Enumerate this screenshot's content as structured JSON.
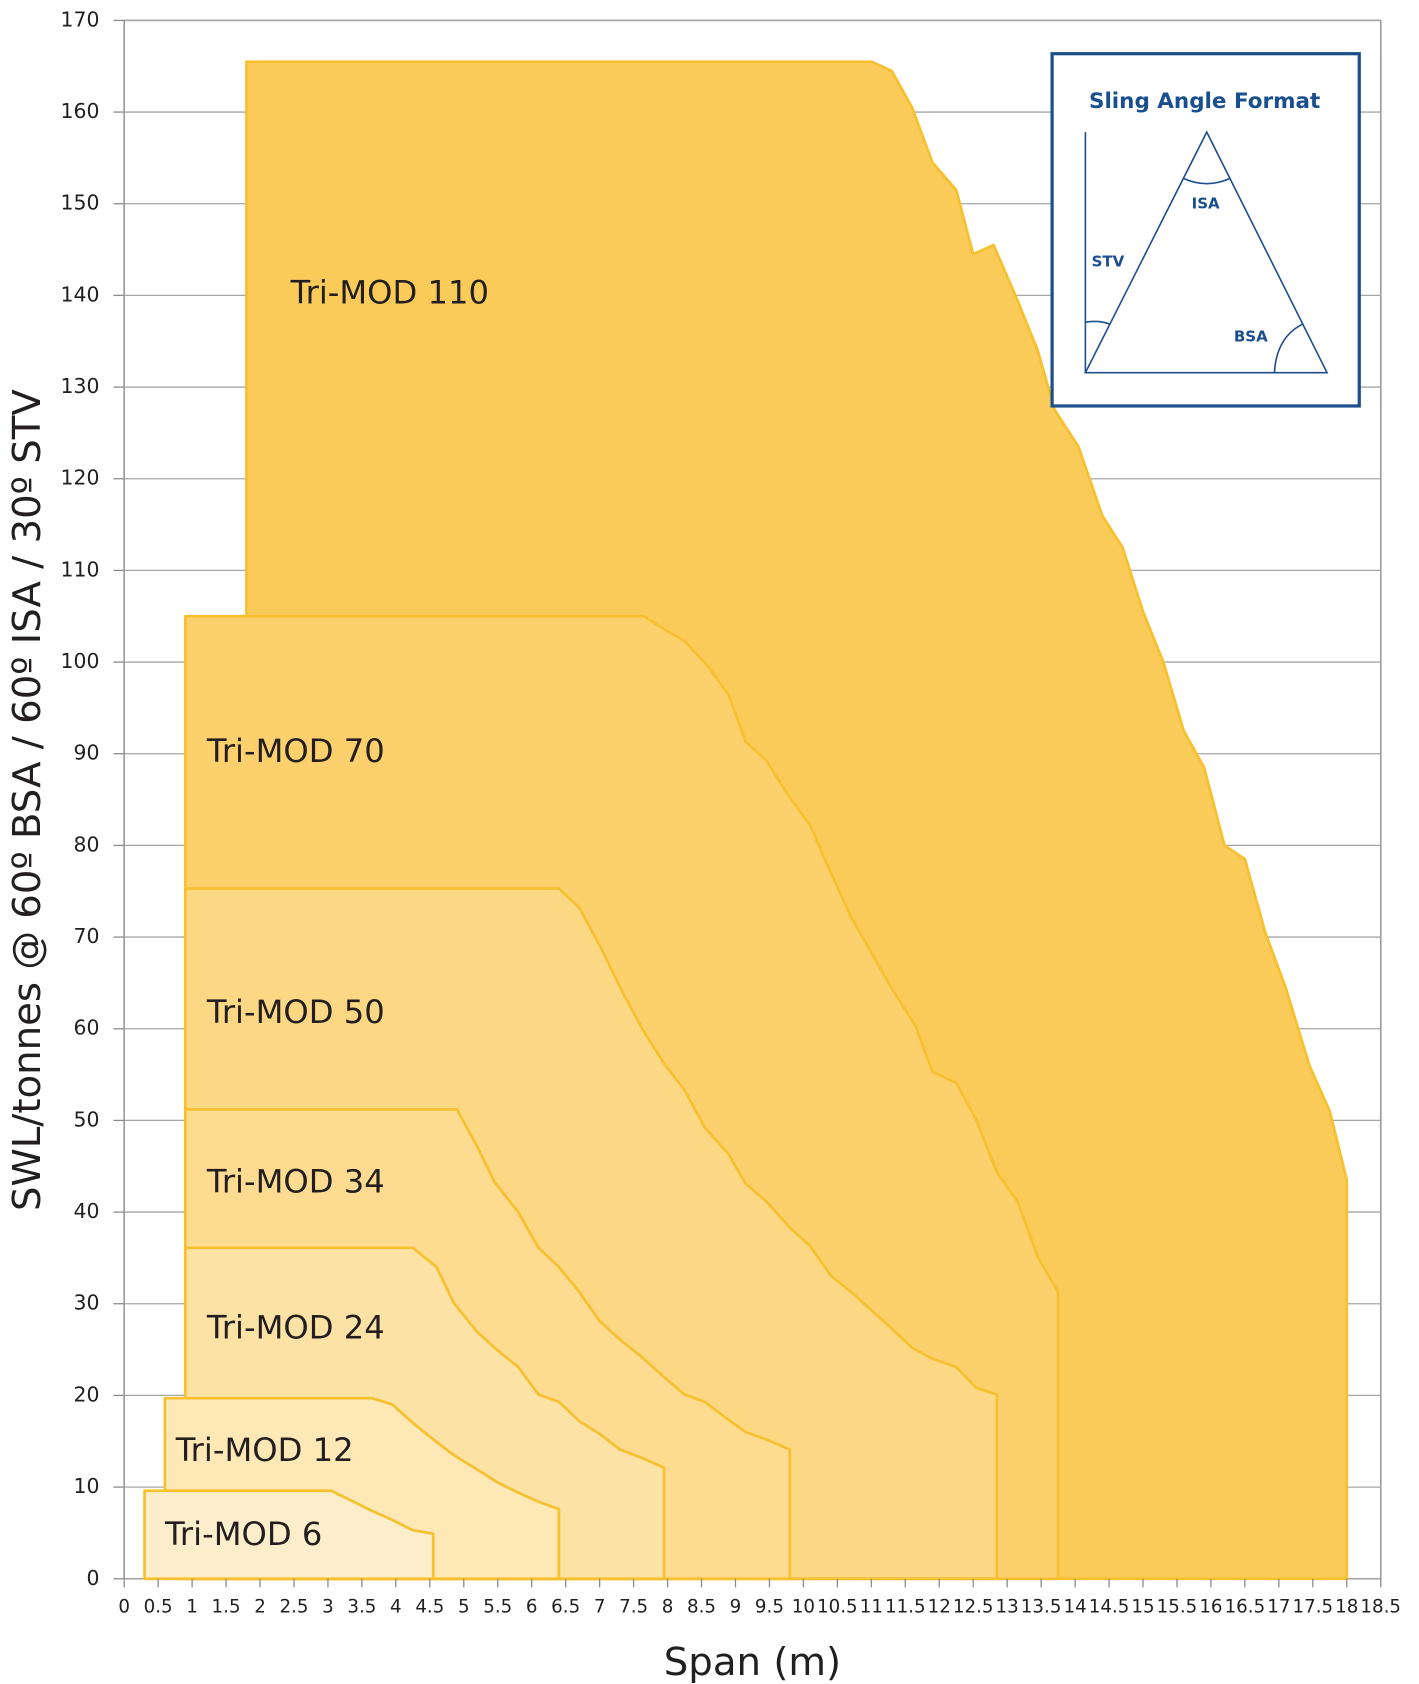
{
  "chart_data": {
    "type": "area",
    "x_label": "Span (m)",
    "y_label": "SWL/tonnes @ 60º BSA / 60º ISA / 30º STV",
    "xlim": [
      0,
      18.5
    ],
    "ylim": [
      0,
      170
    ],
    "xticks": [
      0,
      0.5,
      1,
      1.5,
      2,
      2.5,
      3,
      3.5,
      4,
      4.5,
      5,
      5.5,
      6,
      6.5,
      7,
      7.5,
      8,
      8.5,
      9,
      9.5,
      10,
      10.5,
      11,
      11.5,
      12,
      12.5,
      13,
      13.5,
      14,
      14.5,
      15,
      15.5,
      16,
      16.5,
      17,
      17.5,
      18,
      18.5
    ],
    "yticks": [
      0,
      10,
      20,
      30,
      40,
      50,
      60,
      70,
      80,
      90,
      100,
      110,
      120,
      130,
      140,
      150,
      160,
      170
    ],
    "grid": true,
    "series": [
      {
        "name": "Tri-MOD 110",
        "color": "#fbcb5a",
        "x": [
          1.8,
          1.8,
          11,
          11.3,
          11.6,
          11.9,
          12.25,
          12.5,
          12.8,
          13.15,
          13.45,
          13.7,
          14.05,
          14.4,
          14.7,
          15,
          15.3,
          15.6,
          15.9,
          16.2,
          16.5,
          16.8,
          17.1,
          17.45,
          17.75,
          18,
          18
        ],
        "values": [
          0,
          165.5,
          165.5,
          164.5,
          160.5,
          154.5,
          151.5,
          144.5,
          145.5,
          139.5,
          134,
          127.5,
          123.5,
          116,
          112.5,
          105.5,
          100,
          92.5,
          88.5,
          80,
          78.5,
          70.5,
          64.5,
          56,
          51,
          43.5,
          0
        ]
      },
      {
        "name": "Tri-MOD 70",
        "color": "#fcd06d",
        "x": [
          0.9,
          0.9,
          7.65,
          7.95,
          8.25,
          8.6,
          8.9,
          9.15,
          9.45,
          9.8,
          10.1,
          10.35,
          10.7,
          11,
          11.3,
          11.65,
          11.9,
          12.25,
          12.55,
          12.85,
          13.15,
          13.45,
          13.75,
          13.75
        ],
        "values": [
          0,
          105,
          105,
          103.6,
          102.3,
          99.5,
          96.4,
          91.3,
          89.3,
          85.2,
          82.2,
          77.9,
          72.2,
          68.3,
          64.4,
          60.3,
          55.3,
          54.1,
          50,
          44.3,
          41.2,
          35.1,
          31.3,
          0
        ]
      },
      {
        "name": "Tri-MOD 50",
        "color": "#fcd784",
        "x": [
          0.9,
          0.9,
          6.4,
          6.7,
          7,
          7.35,
          7.65,
          7.95,
          8.25,
          8.55,
          8.9,
          9.15,
          9.45,
          9.8,
          10.1,
          10.4,
          10.7,
          11,
          11.3,
          11.6,
          11.9,
          12.25,
          12.55,
          12.85,
          12.85
        ],
        "values": [
          0,
          75.3,
          75.3,
          73.2,
          69.1,
          63.8,
          59.7,
          56.2,
          53.3,
          49.2,
          46.3,
          43.1,
          41.2,
          38.3,
          36.3,
          33.1,
          31.3,
          29.3,
          27.3,
          25.2,
          24,
          23.1,
          20.8,
          20.1,
          0
        ]
      },
      {
        "name": "Tri-MOD 34",
        "color": "#fddb91",
        "x": [
          0.9,
          0.9,
          4.9,
          5.2,
          5.45,
          5.8,
          6.1,
          6.4,
          6.7,
          7,
          7.3,
          7.65,
          7.95,
          8.25,
          8.55,
          8.85,
          9.15,
          9.45,
          9.8,
          9.8
        ],
        "values": [
          0,
          51.2,
          51.2,
          47.1,
          43.3,
          40,
          36.1,
          34,
          31.3,
          28.1,
          26.1,
          24,
          22,
          20.1,
          19.3,
          17.6,
          16,
          15.2,
          14.1,
          0
        ]
      },
      {
        "name": "Tri-MOD 24",
        "color": "#fde2a6",
        "x": [
          0.9,
          0.9,
          4.25,
          4.6,
          4.85,
          5.2,
          5.5,
          5.8,
          6.1,
          6.4,
          6.7,
          7,
          7.3,
          7.65,
          7.95,
          7.95
        ],
        "values": [
          0,
          36.1,
          36.1,
          34,
          30.1,
          26.9,
          24.9,
          23.1,
          20.1,
          19.3,
          17.2,
          15.8,
          14.1,
          13.1,
          12.1,
          0
        ]
      },
      {
        "name": "Tri-MOD 12",
        "color": "#fde8b6",
        "x": [
          0.6,
          0.6,
          3.65,
          3.95,
          4.25,
          4.55,
          4.85,
          5.2,
          5.5,
          5.8,
          6.1,
          6.4,
          6.4
        ],
        "values": [
          0,
          19.7,
          19.7,
          19,
          17,
          15.2,
          13.5,
          11.9,
          10.5,
          9.4,
          8.4,
          7.6,
          0
        ]
      },
      {
        "name": "Tri-MOD 6",
        "color": "#fdeecb",
        "x": [
          0.3,
          0.3,
          3.05,
          3.35,
          3.65,
          3.95,
          4.25,
          4.55,
          4.55
        ],
        "values": [
          0,
          9.6,
          9.6,
          8.5,
          7.4,
          6.4,
          5.3,
          4.9,
          0
        ]
      }
    ],
    "inset": {
      "title": "Sling Angle Format",
      "labels": [
        "ISA",
        "STV",
        "BSA"
      ]
    }
  }
}
